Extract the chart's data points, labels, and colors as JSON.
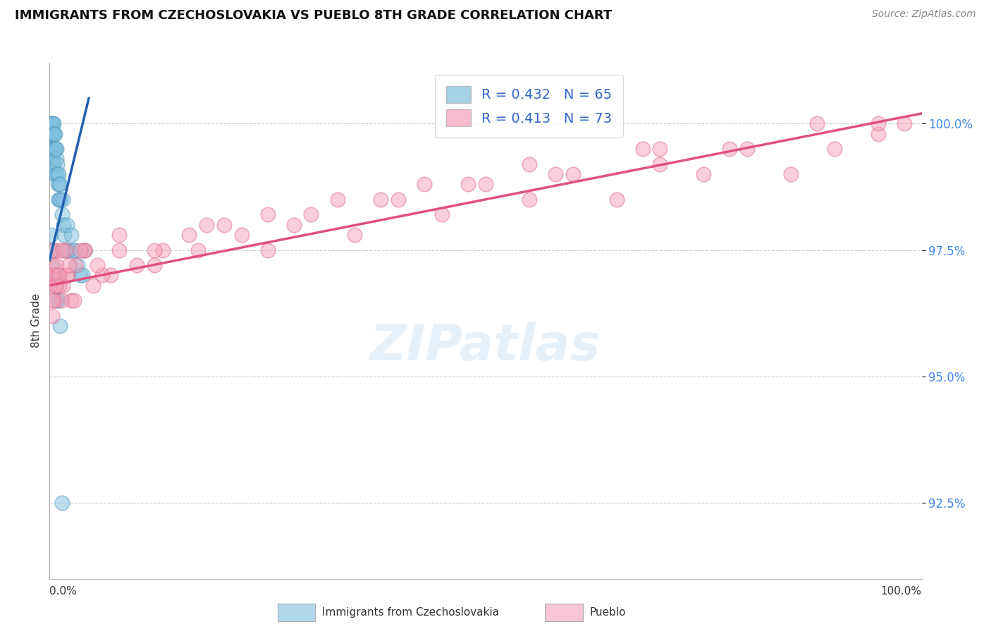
{
  "title": "IMMIGRANTS FROM CZECHOSLOVAKIA VS PUEBLO 8TH GRADE CORRELATION CHART",
  "source_text": "Source: ZipAtlas.com",
  "ylabel": "8th Grade",
  "yticks": [
    92.5,
    95.0,
    97.5,
    100.0
  ],
  "ytick_labels": [
    "92.5%",
    "95.0%",
    "97.5%",
    "100.0%"
  ],
  "xmin": 0.0,
  "xmax": 100.0,
  "ymin": 91.0,
  "ymax": 101.2,
  "R_blue": 0.432,
  "N_blue": 65,
  "R_pink": 0.413,
  "N_pink": 73,
  "blue_color": "#7fbfdf",
  "pink_color": "#f4a0b8",
  "blue_edge_color": "#5a9ec0",
  "pink_edge_color": "#e07090",
  "blue_line_color": "#2060b0",
  "pink_line_color": "#e05080",
  "legend_blue_label": "R = 0.432   N = 65",
  "legend_pink_label": "R = 0.413   N = 73",
  "blue_trend_x0": 0.0,
  "blue_trend_y0": 97.3,
  "blue_trend_x1": 4.5,
  "blue_trend_y1": 100.5,
  "pink_trend_x0": 0.0,
  "pink_trend_y0": 96.8,
  "pink_trend_x1": 100.0,
  "pink_trend_y1": 100.2,
  "blue_x": [
    0.1,
    0.1,
    0.1,
    0.15,
    0.15,
    0.2,
    0.2,
    0.2,
    0.25,
    0.25,
    0.3,
    0.3,
    0.35,
    0.35,
    0.4,
    0.4,
    0.45,
    0.45,
    0.5,
    0.5,
    0.55,
    0.55,
    0.6,
    0.6,
    0.65,
    0.7,
    0.7,
    0.75,
    0.8,
    0.85,
    0.9,
    0.95,
    1.0,
    1.0,
    1.1,
    1.1,
    1.2,
    1.3,
    1.4,
    1.5,
    1.6,
    1.7,
    1.8,
    2.0,
    2.0,
    2.2,
    2.5,
    2.8,
    3.0,
    3.2,
    3.5,
    3.8,
    4.0,
    0.15,
    0.2,
    0.3,
    0.4,
    0.5,
    0.6,
    0.7,
    0.8,
    0.9,
    1.0,
    1.2,
    1.4
  ],
  "blue_y": [
    100.0,
    99.8,
    99.5,
    100.0,
    99.5,
    100.0,
    99.8,
    99.5,
    99.8,
    99.5,
    100.0,
    99.5,
    99.8,
    99.3,
    100.0,
    99.5,
    99.8,
    99.2,
    100.0,
    99.5,
    99.8,
    99.0,
    99.8,
    99.5,
    99.5,
    99.5,
    99.0,
    99.3,
    99.5,
    99.2,
    99.0,
    98.8,
    99.0,
    98.5,
    98.8,
    98.5,
    98.8,
    98.5,
    98.2,
    98.5,
    98.0,
    97.8,
    97.5,
    98.0,
    97.5,
    97.5,
    97.8,
    97.5,
    97.5,
    97.2,
    97.0,
    97.0,
    97.5,
    97.8,
    97.5,
    97.2,
    97.0,
    97.5,
    97.0,
    96.8,
    97.0,
    96.5,
    96.5,
    96.0,
    92.5
  ],
  "pink_x": [
    0.2,
    0.3,
    0.4,
    0.5,
    0.6,
    0.7,
    0.8,
    1.0,
    1.2,
    1.5,
    1.8,
    2.0,
    2.5,
    3.0,
    4.0,
    5.0,
    7.0,
    10.0,
    13.0,
    16.0,
    20.0,
    25.0,
    30.0,
    35.0,
    40.0,
    45.0,
    50.0,
    55.0,
    60.0,
    65.0,
    70.0,
    75.0,
    80.0,
    85.0,
    90.0,
    95.0,
    98.0,
    0.3,
    0.5,
    0.8,
    1.1,
    1.4,
    2.0,
    2.8,
    4.0,
    6.0,
    8.0,
    12.0,
    17.0,
    22.0,
    28.0,
    38.0,
    48.0,
    58.0,
    68.0,
    78.0,
    88.0,
    95.0,
    0.4,
    0.7,
    1.0,
    1.5,
    2.2,
    3.5,
    5.5,
    8.0,
    12.0,
    18.0,
    25.0,
    33.0,
    43.0,
    55.0,
    70.0
  ],
  "pink_y": [
    97.0,
    96.8,
    97.2,
    97.5,
    96.5,
    97.0,
    96.8,
    97.5,
    97.0,
    96.8,
    97.5,
    97.0,
    96.5,
    97.2,
    97.5,
    96.8,
    97.0,
    97.2,
    97.5,
    97.8,
    98.0,
    97.5,
    98.2,
    97.8,
    98.5,
    98.2,
    98.8,
    98.5,
    99.0,
    98.5,
    99.2,
    99.0,
    99.5,
    99.0,
    99.5,
    99.8,
    100.0,
    96.2,
    97.0,
    97.2,
    96.8,
    96.5,
    97.0,
    96.5,
    97.5,
    97.0,
    97.5,
    97.2,
    97.5,
    97.8,
    98.0,
    98.5,
    98.8,
    99.0,
    99.5,
    99.5,
    100.0,
    100.0,
    96.5,
    96.8,
    97.0,
    97.5,
    97.2,
    97.5,
    97.2,
    97.8,
    97.5,
    98.0,
    98.2,
    98.5,
    98.8,
    99.2,
    99.5
  ]
}
